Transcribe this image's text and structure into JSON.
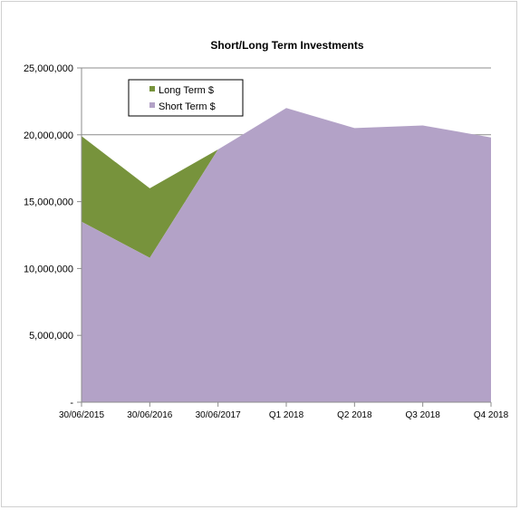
{
  "chart_data": {
    "type": "area",
    "title": "Short/Long Term Investments",
    "xlabel": "",
    "ylabel": "",
    "categories": [
      "30/06/2015",
      "30/06/2016",
      "30/06/2017",
      "Q1 2018",
      "Q2 2018",
      "Q3 2018",
      "Q4 2018"
    ],
    "y_tick_labels": [
      "-",
      "5,000,000",
      "10,000,000",
      "15,000,000",
      "20,000,000",
      "25,000,000"
    ],
    "ylim": [
      0,
      25000000
    ],
    "grid": "horizontal major",
    "legend_position": "top-left",
    "stacked": true,
    "series": [
      {
        "name": "Short Term $",
        "color": "#b3a2c7",
        "values": [
          13500000,
          10800000,
          18900000,
          22000000,
          20500000,
          20700000,
          19800000
        ]
      },
      {
        "name": "Long Term $",
        "color": "#77933c",
        "values": [
          6400000,
          5200000,
          0,
          0,
          0,
          0,
          0
        ]
      }
    ]
  }
}
